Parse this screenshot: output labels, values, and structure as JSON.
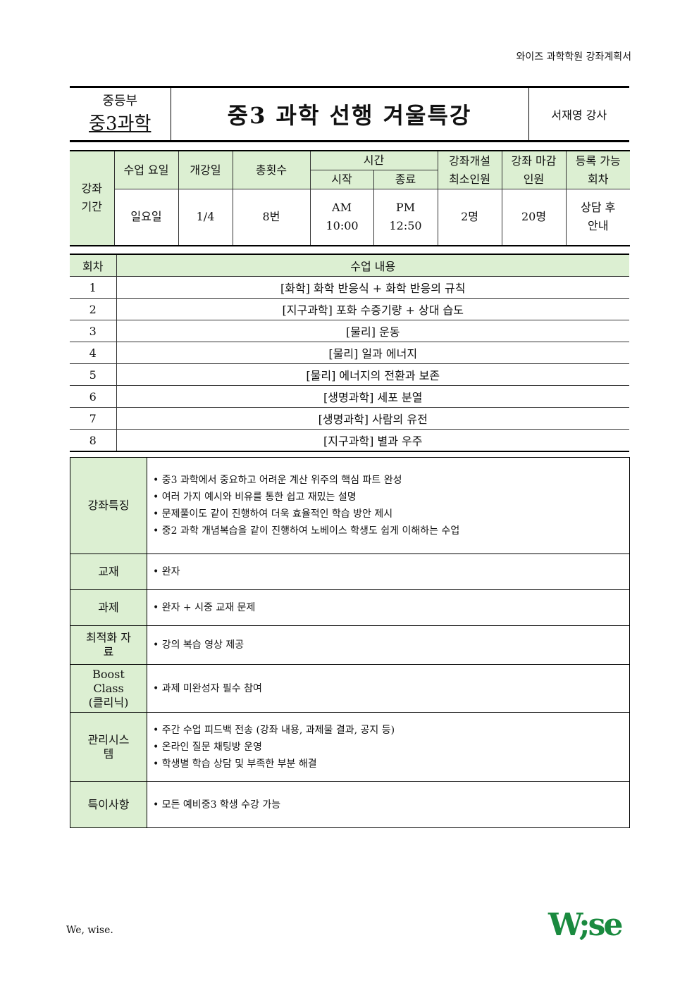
{
  "header": {
    "doc_label": "와이즈 과학학원 강좌계획서"
  },
  "title_block": {
    "dept": "중등부",
    "subject": "중3과학",
    "title": "중3 과학 선행 겨울특강",
    "teacher": "서재영 강사"
  },
  "schedule": {
    "row_label": "강좌 기간",
    "headers": {
      "day": "수업 요일",
      "start_date": "개강일",
      "sessions": "총횟수",
      "time": "시간",
      "time_start": "시작",
      "time_end": "종료",
      "min": "강좌개설 최소인원",
      "max": "강좌 마감인원",
      "reg": "등록 가능회차"
    },
    "values": {
      "day": "일요일",
      "start_date": "1/4",
      "sessions": "8번",
      "time_start": "AM 10:00",
      "time_end": "PM 12:50",
      "min": "2명",
      "max": "20명",
      "reg": "상담 후 안내"
    }
  },
  "curriculum": {
    "headers": {
      "no": "회차",
      "content": "수업 내용"
    },
    "rows": [
      {
        "no": "1",
        "content": "[화학] 화학 반응식 + 화학 반응의 규칙"
      },
      {
        "no": "2",
        "content": "[지구과학] 포화 수증기량 + 상대 습도"
      },
      {
        "no": "3",
        "content": "[물리] 운동"
      },
      {
        "no": "4",
        "content": "[물리] 일과 에너지"
      },
      {
        "no": "5",
        "content": "[물리] 에너지의 전환과 보존"
      },
      {
        "no": "6",
        "content": "[생명과학] 세포 분열"
      },
      {
        "no": "7",
        "content": "[생명과학] 사람의 유전"
      },
      {
        "no": "8",
        "content": "[지구과학] 별과 우주"
      }
    ]
  },
  "details": [
    {
      "label": "강좌특징",
      "items": [
        "중3 과학에서 중요하고 어려운 계산 위주의 핵심 파트 완성",
        "여러 가지 예시와 비유를 통한 쉽고 재밌는 설명",
        "문제풀이도 같이 진행하여 더욱 효율적인 학습 방안 제시",
        "중2 과학 개념복습을 같이 진행하여 노베이스 학생도 쉽게 이해하는 수업"
      ]
    },
    {
      "label": "교재",
      "items": [
        "완자"
      ]
    },
    {
      "label": "과제",
      "items": [
        "완자 + 시중 교재 문제"
      ]
    },
    {
      "label": "최적화 자료",
      "items": [
        "강의 복습 영상 제공"
      ]
    },
    {
      "label": "Boost Class (클리닉)",
      "items": [
        "과제 미완성자 필수 참여"
      ]
    },
    {
      "label": "관리시스템",
      "items": [
        "주간 수업 피드백 전송 (강좌 내용, 과제물 결과, 공지 등)",
        "온라인 질문 채팅방 운영",
        "학생별 학습 상담 및 부족한 부분 해결"
      ]
    },
    {
      "label": "특이사항",
      "items": [
        "모든 예비중3 학생 수강 가능"
      ]
    }
  ],
  "footer": {
    "slogan": "We, wise.",
    "logo": "W;se"
  },
  "colors": {
    "header_fill": "#dcefd2",
    "logo": "#1a8a3f"
  }
}
